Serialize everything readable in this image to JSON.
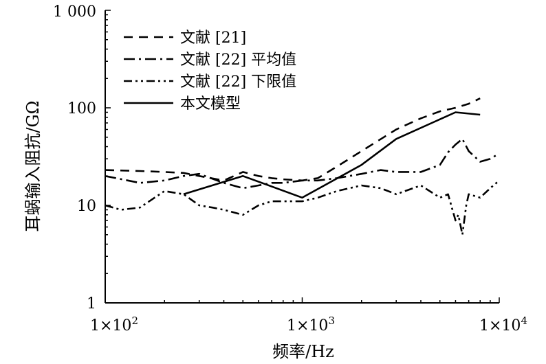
{
  "chart_data": {
    "type": "line",
    "xlabel": "频率/Hz",
    "ylabel": "耳蜗输入阻抗/GΩ",
    "x_scale": "log",
    "y_scale": "log",
    "xlim": [
      100,
      10000
    ],
    "ylim": [
      1,
      1000
    ],
    "x_ticks": [
      {
        "value": 100,
        "mantissa": "1×10",
        "exp": "2"
      },
      {
        "value": 1000,
        "mantissa": "1×10",
        "exp": "3"
      },
      {
        "value": 10000,
        "mantissa": "1×10",
        "exp": "4"
      }
    ],
    "y_ticks": [
      {
        "value": 1,
        "label": "1"
      },
      {
        "value": 10,
        "label": "10"
      },
      {
        "value": 100,
        "label": "100"
      },
      {
        "value": 1000,
        "label": "1 000"
      }
    ],
    "grid": false,
    "legend_position": "top-left",
    "series": [
      {
        "name": "文献 [21]",
        "style": "dashed",
        "x": [
          100,
          150,
          200,
          250,
          300,
          400,
          500,
          600,
          700,
          800,
          1000,
          1200,
          1500,
          2000,
          3000,
          4000,
          5000,
          6000,
          7000,
          8000
        ],
        "y": [
          23,
          22.5,
          22,
          21.5,
          20,
          18,
          22,
          20,
          19,
          18.5,
          18,
          19,
          25,
          36,
          60,
          78,
          92,
          100,
          110,
          125
        ]
      },
      {
        "name": "文献 [22] 平均值",
        "style": "dash-dot",
        "x": [
          100,
          150,
          200,
          250,
          300,
          400,
          500,
          600,
          700,
          800,
          1000,
          1200,
          1500,
          2000,
          2500,
          3000,
          3500,
          4000,
          4500,
          5000,
          5500,
          6000,
          6500,
          7000,
          8000,
          9000,
          10000
        ],
        "y": [
          20,
          17,
          18,
          20,
          21,
          17,
          15,
          16,
          17,
          17,
          18,
          18,
          19,
          21,
          23,
          22,
          22,
          22,
          24,
          26,
          35,
          42,
          48,
          36,
          28,
          30,
          34
        ]
      },
      {
        "name": "文献 [22] 下限值",
        "style": "dash-dot-dot",
        "x": [
          100,
          120,
          150,
          200,
          250,
          300,
          350,
          400,
          500,
          600,
          700,
          800,
          1000,
          1200,
          1500,
          2000,
          2500,
          3000,
          4000,
          5000,
          5500,
          6000,
          6200,
          6500,
          6800,
          7000,
          8000,
          9000,
          10000
        ],
        "y": [
          10,
          9,
          9.5,
          14,
          13,
          10,
          9.5,
          9,
          8,
          10,
          11,
          11,
          11,
          12,
          14,
          16,
          15,
          13,
          16,
          12,
          13,
          7,
          8,
          5,
          10,
          13,
          12,
          15,
          18
        ]
      },
      {
        "name": "本文模型",
        "style": "solid",
        "x": [
          250,
          500,
          1000,
          2000,
          3000,
          6000,
          8000
        ],
        "y": [
          13,
          20,
          12,
          26,
          48,
          90,
          85
        ]
      }
    ]
  }
}
